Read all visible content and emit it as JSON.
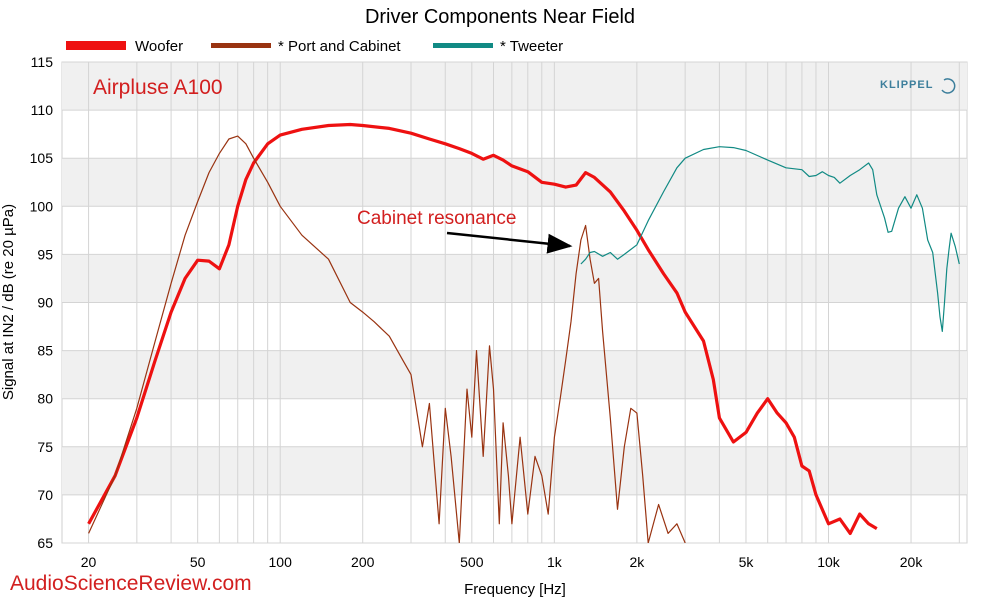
{
  "chart_data": {
    "type": "line",
    "title": "Driver Components Near Field",
    "xlabel": "Frequency [Hz]",
    "ylabel": "Signal at IN2 / dB (re 20 µPa)",
    "x_scale": "log",
    "xlim": [
      16,
      32000
    ],
    "ylim": [
      65,
      115
    ],
    "y_ticks": [
      65,
      70,
      75,
      80,
      85,
      90,
      95,
      100,
      105,
      110,
      115
    ],
    "x_ticks": [
      {
        "value": 20,
        "label": "20"
      },
      {
        "value": 50,
        "label": "50"
      },
      {
        "value": 100,
        "label": "100"
      },
      {
        "value": 200,
        "label": "200"
      },
      {
        "value": 500,
        "label": "500"
      },
      {
        "value": 1000,
        "label": "1k"
      },
      {
        "value": 2000,
        "label": "2k"
      },
      {
        "value": 5000,
        "label": "5k"
      },
      {
        "value": 10000,
        "label": "10k"
      },
      {
        "value": 20000,
        "label": "20k"
      }
    ],
    "grid": true,
    "legend_position": "top",
    "series": [
      {
        "name": "Woofer",
        "color": "#ee1111",
        "x": [
          20,
          25,
          30,
          35,
          40,
          45,
          50,
          55,
          60,
          65,
          70,
          75,
          80,
          90,
          100,
          120,
          150,
          180,
          200,
          250,
          300,
          350,
          400,
          450,
          500,
          550,
          600,
          650,
          700,
          800,
          900,
          1000,
          1100,
          1200,
          1300,
          1400,
          1600,
          1800,
          2000,
          2200,
          2500,
          2800,
          3000,
          3500,
          3800,
          4000,
          4500,
          5000,
          5500,
          6000,
          6500,
          7000,
          7500,
          8000,
          8500,
          9000,
          10000,
          11000,
          12000,
          13000,
          14000,
          15000
        ],
        "y": [
          67,
          72,
          78,
          84,
          89,
          92.5,
          94.4,
          94.3,
          93.5,
          96,
          100,
          102.8,
          104.5,
          106.5,
          107.4,
          108,
          108.4,
          108.5,
          108.4,
          108.1,
          107.6,
          107,
          106.5,
          106,
          105.5,
          104.9,
          105.3,
          104.8,
          104.2,
          103.6,
          102.5,
          102.3,
          102,
          102.2,
          103.5,
          103,
          101.5,
          99.5,
          97.5,
          95.5,
          93,
          91,
          89,
          86,
          82,
          78,
          75.5,
          76.5,
          78.5,
          80,
          78.5,
          77.5,
          76,
          73,
          72.5,
          70,
          67,
          67.5,
          66,
          68,
          67,
          66.5
        ]
      },
      {
        "name": "* Port and Cabinet",
        "color": "#993311",
        "x": [
          20,
          25,
          30,
          35,
          40,
          45,
          50,
          55,
          60,
          65,
          70,
          75,
          80,
          90,
          100,
          120,
          150,
          180,
          200,
          220,
          250,
          280,
          300,
          330,
          350,
          380,
          400,
          420,
          450,
          480,
          500,
          520,
          550,
          580,
          600,
          630,
          650,
          680,
          700,
          750,
          800,
          850,
          900,
          950,
          1000,
          1050,
          1100,
          1150,
          1200,
          1250,
          1300,
          1350,
          1400,
          1450,
          1500,
          1600,
          1700,
          1800,
          1900,
          2000,
          2100,
          2200,
          2400,
          2600,
          2800,
          3000
        ],
        "y": [
          66,
          72,
          79,
          86,
          92,
          97,
          100.5,
          103.5,
          105.5,
          107,
          107.3,
          106.5,
          105,
          102.5,
          100,
          97,
          94.5,
          90,
          89,
          88,
          86.5,
          84,
          82.5,
          75,
          79.5,
          67,
          79,
          74,
          65,
          81,
          76,
          85,
          74,
          85.5,
          81,
          67,
          77.5,
          72,
          67,
          76,
          68,
          74,
          72,
          68,
          76,
          80,
          84,
          88,
          93,
          96.5,
          98,
          94.5,
          92,
          92.5,
          87,
          78,
          68.5,
          75,
          79,
          78.5,
          72,
          65,
          69,
          66,
          67,
          65
        ]
      },
      {
        "name": "* Tweeter",
        "color": "#118a84",
        "x": [
          1250,
          1300,
          1350,
          1400,
          1500,
          1600,
          1700,
          1800,
          2000,
          2200,
          2500,
          2800,
          3000,
          3500,
          4000,
          4500,
          5000,
          6000,
          7000,
          8000,
          8500,
          9000,
          9500,
          10000,
          10500,
          11000,
          12000,
          13000,
          14000,
          14500,
          15000,
          16000,
          16500,
          17000,
          18000,
          19000,
          20000,
          21000,
          22000,
          23000,
          24000,
          25000,
          25500,
          26000,
          26500,
          27000,
          27500,
          28000,
          29000,
          30000
        ],
        "y": [
          94,
          94.5,
          95.2,
          95.3,
          94.8,
          95.2,
          94.5,
          95,
          96,
          98.5,
          101.5,
          104,
          105,
          105.9,
          106.2,
          106.1,
          105.8,
          104.8,
          104,
          103.8,
          103.1,
          103.2,
          103.6,
          103.2,
          103,
          102.4,
          103.2,
          103.8,
          104.5,
          103.8,
          101.2,
          98.8,
          97.3,
          97.4,
          99.8,
          101,
          99.8,
          101.2,
          99.8,
          96.5,
          95.2,
          91,
          88.5,
          87,
          90,
          93.5,
          95.5,
          97.2,
          95.8,
          94
        ]
      }
    ]
  },
  "labels": {
    "brand": "Airpluse A100",
    "annotation": "Cabinet resonance",
    "site": "AudioScienceReview.com",
    "logo": "KLIPPEL"
  }
}
